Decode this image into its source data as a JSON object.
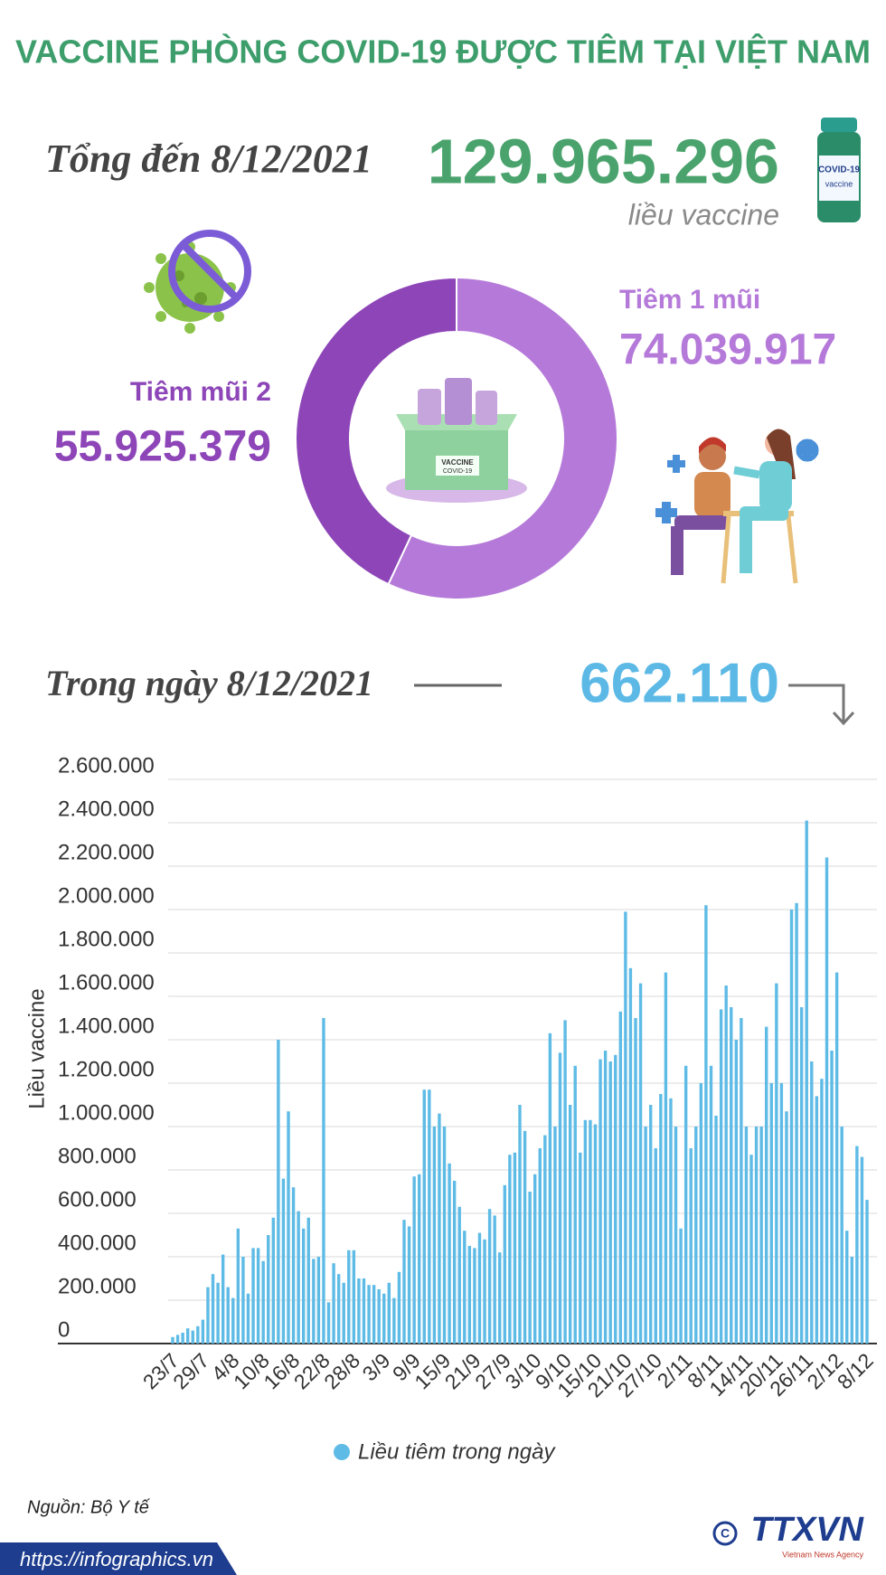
{
  "header": {
    "title": "VACCINE PHÒNG COVID-19 ĐƯỢC TIÊM TẠI VIỆT NAM",
    "total_label": "Tổng đến 8/12/2021",
    "total_value": "129.965.296",
    "total_unit": "liều vaccine",
    "daily_label": "Trong ngày 8/12/2021",
    "daily_value": "662.110"
  },
  "chart_data": [
    {
      "type": "donut",
      "categories": [
        "Tiêm 1 mũi",
        "Tiêm mũi 2"
      ],
      "values": [
        74039917,
        55925379
      ],
      "value_labels": [
        "74.039.917",
        "55.925.379"
      ],
      "colors": [
        "#b57ad9",
        "#8d45b8"
      ]
    },
    {
      "type": "bar",
      "y_label": "Liều vaccine",
      "categories": [
        "23/7",
        null,
        null,
        null,
        null,
        null,
        "29/7",
        null,
        null,
        null,
        null,
        null,
        "4/8",
        null,
        null,
        null,
        null,
        null,
        "10/8",
        null,
        null,
        null,
        null,
        null,
        "16/8",
        null,
        null,
        null,
        null,
        null,
        "22/8",
        null,
        null,
        null,
        null,
        null,
        "28/8",
        null,
        null,
        null,
        null,
        null,
        "3/9",
        null,
        null,
        null,
        null,
        null,
        "9/9",
        null,
        null,
        null,
        null,
        null,
        "15/9",
        null,
        null,
        null,
        null,
        null,
        "21/9",
        null,
        null,
        null,
        null,
        null,
        "27/9",
        null,
        null,
        null,
        null,
        null,
        "3/10",
        null,
        null,
        null,
        null,
        null,
        "9/10",
        null,
        null,
        null,
        null,
        null,
        "15/10",
        null,
        null,
        null,
        null,
        null,
        "21/10",
        null,
        null,
        null,
        null,
        null,
        "27/10",
        null,
        null,
        null,
        null,
        null,
        "2/11",
        null,
        null,
        null,
        null,
        null,
        "8/11",
        null,
        null,
        null,
        null,
        null,
        "14/11",
        null,
        null,
        null,
        null,
        null,
        "20/11",
        null,
        null,
        null,
        null,
        null,
        "26/11",
        null,
        null,
        null,
        null,
        null,
        "2/12",
        null,
        null,
        null,
        null,
        null,
        "8/12"
      ],
      "series": [
        {
          "name": "Liều tiêm trong ngày",
          "color": "#5ebbe6",
          "values": [
            30000,
            40000,
            50000,
            70000,
            60000,
            80000,
            110000,
            260000,
            320000,
            280000,
            410000,
            260000,
            210000,
            530000,
            400000,
            230000,
            440000,
            440000,
            380000,
            500000,
            580000,
            1400000,
            760000,
            1070000,
            720000,
            610000,
            530000,
            580000,
            390000,
            400000,
            1500000,
            190000,
            370000,
            320000,
            280000,
            430000,
            430000,
            300000,
            300000,
            270000,
            270000,
            250000,
            230000,
            280000,
            210000,
            330000,
            570000,
            540000,
            770000,
            780000,
            1170000,
            1170000,
            1000000,
            1060000,
            1000000,
            830000,
            750000,
            630000,
            520000,
            450000,
            440000,
            510000,
            480000,
            620000,
            590000,
            420000,
            730000,
            870000,
            880000,
            1100000,
            980000,
            700000,
            780000,
            900000,
            960000,
            1430000,
            1000000,
            1340000,
            1490000,
            1100000,
            1280000,
            880000,
            1030000,
            1030000,
            1010000,
            1310000,
            1350000,
            1300000,
            1330000,
            1530000,
            1990000,
            1730000,
            1500000,
            1660000,
            1000000,
            1100000,
            900000,
            1150000,
            1710000,
            1130000,
            1000000,
            530000,
            1280000,
            900000,
            1000000,
            1200000,
            2020000,
            1280000,
            1050000,
            1540000,
            1650000,
            1550000,
            1400000,
            1500000,
            1000000,
            870000,
            1000000,
            1000000,
            1460000,
            1200000,
            1660000,
            1200000,
            1070000,
            2000000,
            2030000,
            1550000,
            2410000,
            1300000,
            1140000,
            1220000,
            2240000,
            1350000,
            1710000,
            1000000,
            520000,
            400000,
            910000,
            860000,
            662110
          ]
        }
      ],
      "ylim": [
        0,
        2600000
      ],
      "yticks": [
        0,
        {
          "value": 200000,
          "label": "200.000"
        },
        {
          "value": 400000,
          "label": "400.000"
        },
        {
          "value": 600000,
          "label": "600.000"
        },
        {
          "value": 800000,
          "label": "800.000"
        },
        {
          "value": 1000000,
          "label": "1.000.000"
        },
        {
          "value": 1200000,
          "label": "1.200.000"
        },
        {
          "value": 1400000,
          "label": "1.400.000"
        },
        {
          "value": 1600000,
          "label": "1.600.000"
        },
        {
          "value": 1800000,
          "label": "1.800.000"
        },
        {
          "value": 2000000,
          "label": "2.000.000"
        },
        {
          "value": 2200000,
          "label": "2.200.000"
        },
        {
          "value": 2400000,
          "label": "2.400.000"
        },
        {
          "value": 2600000,
          "label": "2.600.000"
        }
      ],
      "grid": true
    }
  ],
  "footer": {
    "source": "Nguồn: Bộ Y tế",
    "url": "https://infographics.vn",
    "logo": "TTXVN",
    "logo_sub": "Vietnam News Agency"
  }
}
